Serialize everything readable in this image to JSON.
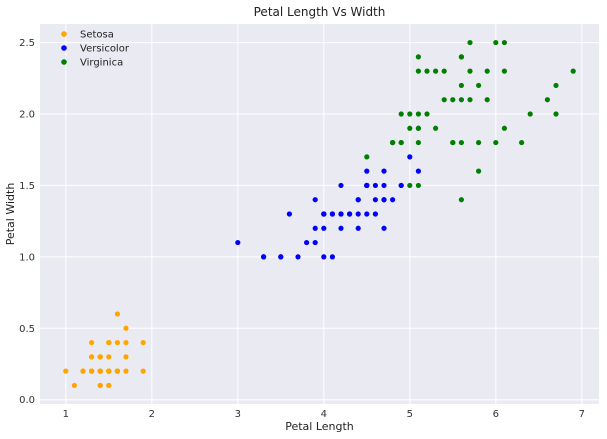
{
  "chart_data": {
    "type": "scatter",
    "title": "Petal Length Vs Width",
    "xlabel": "Petal Length",
    "ylabel": "Petal Width",
    "xlim": [
      0.7,
      7.2
    ],
    "ylim": [
      -0.03,
      2.63
    ],
    "xticks": [
      1,
      2,
      3,
      4,
      5,
      6,
      7
    ],
    "yticks": [
      0.0,
      0.5,
      1.0,
      1.5,
      2.0,
      2.5
    ],
    "grid": true,
    "legend_position": "top-left",
    "background": "#eaeaf2",
    "series": [
      {
        "name": "Setosa",
        "color": "#ffa500",
        "points": [
          [
            1.4,
            0.2
          ],
          [
            1.4,
            0.2
          ],
          [
            1.3,
            0.2
          ],
          [
            1.5,
            0.2
          ],
          [
            1.4,
            0.2
          ],
          [
            1.7,
            0.4
          ],
          [
            1.4,
            0.3
          ],
          [
            1.5,
            0.2
          ],
          [
            1.4,
            0.2
          ],
          [
            1.5,
            0.1
          ],
          [
            1.5,
            0.2
          ],
          [
            1.6,
            0.2
          ],
          [
            1.4,
            0.1
          ],
          [
            1.1,
            0.1
          ],
          [
            1.2,
            0.2
          ],
          [
            1.5,
            0.4
          ],
          [
            1.3,
            0.4
          ],
          [
            1.4,
            0.3
          ],
          [
            1.7,
            0.3
          ],
          [
            1.5,
            0.3
          ],
          [
            1.7,
            0.2
          ],
          [
            1.5,
            0.4
          ],
          [
            1.0,
            0.2
          ],
          [
            1.7,
            0.5
          ],
          [
            1.9,
            0.2
          ],
          [
            1.6,
            0.2
          ],
          [
            1.6,
            0.4
          ],
          [
            1.5,
            0.2
          ],
          [
            1.4,
            0.2
          ],
          [
            1.6,
            0.2
          ],
          [
            1.6,
            0.2
          ],
          [
            1.5,
            0.4
          ],
          [
            1.5,
            0.1
          ],
          [
            1.4,
            0.2
          ],
          [
            1.5,
            0.2
          ],
          [
            1.2,
            0.2
          ],
          [
            1.3,
            0.2
          ],
          [
            1.4,
            0.1
          ],
          [
            1.3,
            0.2
          ],
          [
            1.5,
            0.2
          ],
          [
            1.3,
            0.3
          ],
          [
            1.3,
            0.3
          ],
          [
            1.3,
            0.2
          ],
          [
            1.6,
            0.6
          ],
          [
            1.9,
            0.4
          ],
          [
            1.4,
            0.3
          ],
          [
            1.6,
            0.2
          ],
          [
            1.4,
            0.2
          ],
          [
            1.5,
            0.2
          ],
          [
            1.4,
            0.2
          ]
        ]
      },
      {
        "name": "Versicolor",
        "color": "#0000ff",
        "points": [
          [
            4.7,
            1.4
          ],
          [
            4.5,
            1.5
          ],
          [
            4.9,
            1.5
          ],
          [
            4.0,
            1.3
          ],
          [
            4.6,
            1.5
          ],
          [
            4.5,
            1.3
          ],
          [
            4.7,
            1.6
          ],
          [
            3.3,
            1.0
          ],
          [
            4.6,
            1.3
          ],
          [
            3.9,
            1.4
          ],
          [
            3.5,
            1.0
          ],
          [
            4.2,
            1.5
          ],
          [
            4.0,
            1.0
          ],
          [
            4.7,
            1.4
          ],
          [
            3.6,
            1.3
          ],
          [
            4.4,
            1.4
          ],
          [
            4.5,
            1.5
          ],
          [
            4.1,
            1.0
          ],
          [
            4.5,
            1.5
          ],
          [
            3.9,
            1.1
          ],
          [
            4.8,
            1.8
          ],
          [
            4.0,
            1.3
          ],
          [
            4.9,
            1.5
          ],
          [
            4.7,
            1.2
          ],
          [
            4.3,
            1.3
          ],
          [
            4.4,
            1.4
          ],
          [
            4.8,
            1.4
          ],
          [
            5.0,
            1.7
          ],
          [
            4.5,
            1.5
          ],
          [
            3.5,
            1.0
          ],
          [
            3.8,
            1.1
          ],
          [
            3.7,
            1.0
          ],
          [
            3.9,
            1.2
          ],
          [
            5.1,
            1.6
          ],
          [
            4.5,
            1.5
          ],
          [
            4.5,
            1.6
          ],
          [
            4.7,
            1.5
          ],
          [
            4.4,
            1.3
          ],
          [
            4.1,
            1.3
          ],
          [
            4.0,
            1.3
          ],
          [
            4.4,
            1.2
          ],
          [
            4.6,
            1.4
          ],
          [
            4.0,
            1.2
          ],
          [
            3.3,
            1.0
          ],
          [
            4.2,
            1.3
          ],
          [
            4.2,
            1.2
          ],
          [
            4.2,
            1.3
          ],
          [
            4.3,
            1.3
          ],
          [
            3.0,
            1.1
          ],
          [
            4.1,
            1.3
          ]
        ]
      },
      {
        "name": "Virginica",
        "color": "#008000",
        "points": [
          [
            6.0,
            2.5
          ],
          [
            5.1,
            1.9
          ],
          [
            5.9,
            2.1
          ],
          [
            5.6,
            1.8
          ],
          [
            5.8,
            2.2
          ],
          [
            6.6,
            2.1
          ],
          [
            4.5,
            1.7
          ],
          [
            6.3,
            1.8
          ],
          [
            5.8,
            1.8
          ],
          [
            6.1,
            2.5
          ],
          [
            5.1,
            2.0
          ],
          [
            5.3,
            1.9
          ],
          [
            5.5,
            2.1
          ],
          [
            5.0,
            2.0
          ],
          [
            5.1,
            2.4
          ],
          [
            5.3,
            2.3
          ],
          [
            5.5,
            1.8
          ],
          [
            6.7,
            2.2
          ],
          [
            6.9,
            2.3
          ],
          [
            5.0,
            1.5
          ],
          [
            5.7,
            2.3
          ],
          [
            4.9,
            2.0
          ],
          [
            6.7,
            2.0
          ],
          [
            4.9,
            1.8
          ],
          [
            5.7,
            2.1
          ],
          [
            6.0,
            1.8
          ],
          [
            4.8,
            1.8
          ],
          [
            4.9,
            1.8
          ],
          [
            5.6,
            2.1
          ],
          [
            5.8,
            1.6
          ],
          [
            6.1,
            1.9
          ],
          [
            6.4,
            2.0
          ],
          [
            5.6,
            2.2
          ],
          [
            5.1,
            1.5
          ],
          [
            5.6,
            1.4
          ],
          [
            6.1,
            2.3
          ],
          [
            5.6,
            2.4
          ],
          [
            5.5,
            1.8
          ],
          [
            4.8,
            1.8
          ],
          [
            5.4,
            2.1
          ],
          [
            5.6,
            2.4
          ],
          [
            5.1,
            2.3
          ],
          [
            5.1,
            1.9
          ],
          [
            5.9,
            2.3
          ],
          [
            5.7,
            2.5
          ],
          [
            5.2,
            2.3
          ],
          [
            5.0,
            1.9
          ],
          [
            5.2,
            2.0
          ],
          [
            5.4,
            2.3
          ],
          [
            5.1,
            1.8
          ]
        ]
      }
    ]
  }
}
